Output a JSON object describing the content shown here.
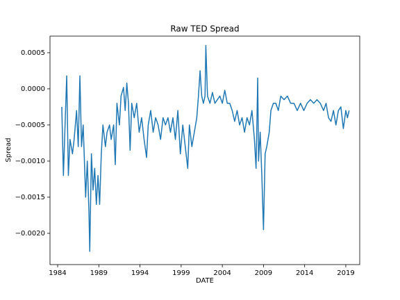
{
  "chart_data": {
    "type": "line",
    "title": "Raw TED Spread",
    "xlabel": "DATE",
    "ylabel": "Spread",
    "x": [
      1984.5,
      1984.7,
      1984.9,
      1985.1,
      1985.3,
      1985.5,
      1985.8,
      1986.0,
      1986.3,
      1986.5,
      1986.7,
      1986.9,
      1987.1,
      1987.4,
      1987.6,
      1987.8,
      1987.9,
      1988.1,
      1988.3,
      1988.5,
      1988.7,
      1988.9,
      1989.1,
      1989.3,
      1989.5,
      1989.8,
      1990.0,
      1990.3,
      1990.5,
      1990.8,
      1991.0,
      1991.2,
      1991.5,
      1991.7,
      1992.0,
      1992.2,
      1992.4,
      1992.6,
      1992.8,
      1993.0,
      1993.3,
      1993.6,
      1993.9,
      1994.2,
      1994.5,
      1994.8,
      1995.0,
      1995.3,
      1995.6,
      1995.9,
      1996.2,
      1996.5,
      1996.8,
      1997.1,
      1997.4,
      1997.7,
      1998.0,
      1998.3,
      1998.6,
      1998.9,
      1999.2,
      1999.5,
      1999.8,
      2000.0,
      2000.3,
      2000.6,
      2000.9,
      2001.1,
      2001.3,
      2001.5,
      2001.7,
      2001.9,
      2002.0,
      2002.2,
      2002.5,
      2002.8,
      2003.1,
      2003.4,
      2003.7,
      2004.0,
      2004.3,
      2004.6,
      2004.9,
      2005.2,
      2005.5,
      2005.8,
      2006.1,
      2006.4,
      2006.7,
      2007.0,
      2007.3,
      2007.6,
      2007.9,
      2008.1,
      2008.3,
      2008.4,
      2008.6,
      2008.8,
      2009.0,
      2009.2,
      2009.4,
      2009.7,
      2009.9,
      2010.2,
      2010.5,
      2010.8,
      2011.1,
      2011.5,
      2011.9,
      2012.3,
      2012.7,
      2013.1,
      2013.5,
      2013.9,
      2014.3,
      2014.7,
      2015.1,
      2015.5,
      2015.9,
      2016.3,
      2016.6,
      2016.9,
      2017.2,
      2017.5,
      2017.8,
      2018.1,
      2018.4,
      2018.7,
      2019.0,
      2019.2,
      2019.4
    ],
    "series": [
      {
        "color": "#1f77b4",
        "values": [
          -0.00025,
          -0.0012,
          -0.0005,
          0.00018,
          -0.0012,
          -0.0007,
          -0.0009,
          -0.0007,
          -0.0003,
          -0.0008,
          0.00018,
          -0.0008,
          -0.0005,
          -0.0015,
          -0.001,
          -0.0017,
          -0.00225,
          -0.0009,
          -0.0014,
          -0.0011,
          -0.0016,
          -0.0012,
          -0.0016,
          -0.0009,
          -0.0005,
          -0.0008,
          -0.0006,
          -0.0005,
          -0.0007,
          -0.0005,
          -0.00105,
          -0.0002,
          -0.0005,
          -0.0001,
          2e-05,
          -0.0003,
          8e-05,
          -0.0002,
          -0.00085,
          -0.0002,
          -0.0004,
          -0.0002,
          -0.0006,
          -0.0004,
          -0.0007,
          -0.00095,
          -0.0005,
          -0.0003,
          -0.0006,
          -0.0004,
          -0.0005,
          -0.0007,
          -0.0004,
          -0.0005,
          -0.0004,
          -0.0006,
          -0.0004,
          -0.0007,
          -0.0003,
          -0.0009,
          -0.0005,
          -0.0008,
          -0.0011,
          -0.0005,
          -0.0008,
          -0.0006,
          -0.0004,
          -0.0001,
          0.00025,
          -0.0001,
          -0.0002,
          -0.0001,
          0.0006,
          -0.0001,
          -0.0002,
          -5e-05,
          -0.0002,
          -0.00015,
          -0.0001,
          -0.0002,
          -2e-05,
          -0.0002,
          -0.0002,
          -0.0003,
          -0.00045,
          -0.0003,
          -0.0005,
          -0.0004,
          -0.0006,
          -0.0004,
          -0.0005,
          -0.0003,
          -0.0007,
          -0.0011,
          0.00015,
          -0.001,
          -0.0006,
          -0.0012,
          -0.00195,
          -0.0009,
          -0.0008,
          -0.0006,
          -0.0003,
          -0.0002,
          -0.0002,
          -0.0003,
          -0.0001,
          -0.00015,
          -0.0001,
          -0.0002,
          -0.0002,
          -0.0003,
          -0.0002,
          -0.0003,
          -0.0002,
          -0.00015,
          -0.0002,
          -0.00015,
          -0.0002,
          -0.0003,
          -0.0002,
          -0.0004,
          -0.00045,
          -0.0003,
          -0.0005,
          -0.0003,
          -0.00025,
          -0.00055,
          -0.0003,
          -0.0004,
          -0.0003
        ]
      }
    ],
    "xlim": [
      1983.07,
      2020.69
    ],
    "xticks": [
      1984,
      1989,
      1994,
      1999,
      2004,
      2009,
      2014,
      2019
    ],
    "ylim": [
      -0.002433,
      0.00073
    ],
    "yticks": [
      {
        "value": -0.002,
        "label": "−0.0020"
      },
      {
        "value": -0.0015,
        "label": "−0.0015"
      },
      {
        "value": -0.001,
        "label": "−0.0010"
      },
      {
        "value": -0.0005,
        "label": "−0.0005"
      },
      {
        "value": 0,
        "label": "0.0000"
      },
      {
        "value": 0.0005,
        "label": "0.0005"
      }
    ]
  }
}
